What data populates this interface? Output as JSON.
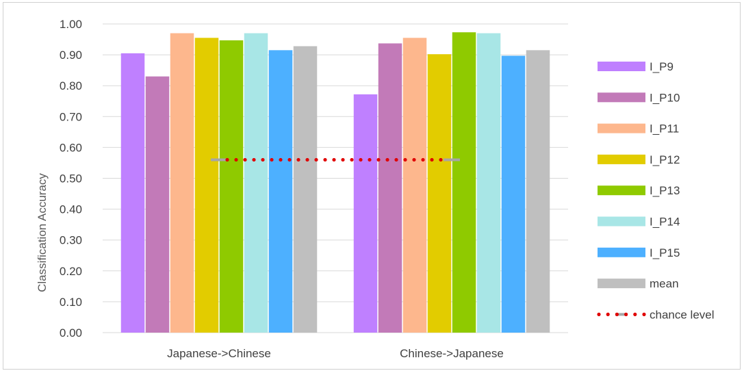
{
  "chart_data": {
    "type": "bar",
    "title": "",
    "xlabel": "",
    "ylabel": "Classification Accuracy",
    "ylim": [
      0,
      1
    ],
    "yticks": [
      "0.00",
      "0.10",
      "0.20",
      "0.30",
      "0.40",
      "0.50",
      "0.60",
      "0.70",
      "0.80",
      "0.90",
      "1.00"
    ],
    "grid": "horizontal",
    "legend_position": "right",
    "categories": [
      "Japanese->Chinese",
      "Chinese->Japanese"
    ],
    "series": [
      {
        "name": "I_P9",
        "color": "#bf80ff",
        "values": [
          0.905,
          0.772
        ]
      },
      {
        "name": "I_P10",
        "color": "#c27ab8",
        "values": [
          0.83,
          0.937
        ]
      },
      {
        "name": "I_P11",
        "color": "#fdb78d",
        "values": [
          0.97,
          0.955
        ]
      },
      {
        "name": "I_P12",
        "color": "#e2cc00",
        "values": [
          0.955,
          0.902
        ]
      },
      {
        "name": "I_P13",
        "color": "#8fca00",
        "values": [
          0.947,
          0.973
        ]
      },
      {
        "name": "I_P14",
        "color": "#a8e6e6",
        "values": [
          0.97,
          0.97
        ]
      },
      {
        "name": "I_P15",
        "color": "#4db0ff",
        "values": [
          0.915,
          0.897
        ]
      },
      {
        "name": "mean",
        "color": "#bfbfbf",
        "values": [
          0.928,
          0.915
        ]
      }
    ],
    "chance_level": {
      "name": "chance level",
      "value": 0.56,
      "color": "#e00000"
    }
  }
}
